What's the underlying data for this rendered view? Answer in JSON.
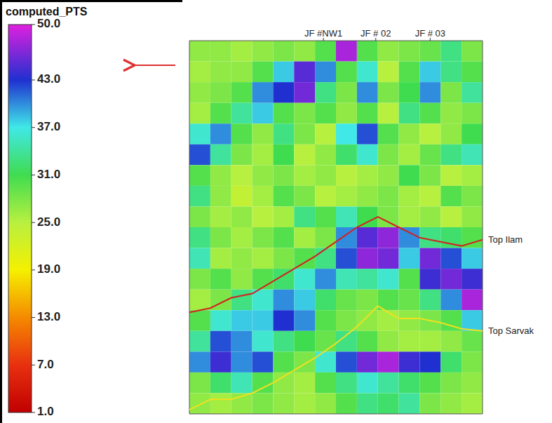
{
  "chart_data": {
    "type": "heatmap",
    "tick_labels": false,
    "xlim": [
      0,
      14
    ],
    "ylim": [
      0,
      18
    ],
    "cells": [
      [
        27,
        27,
        26,
        27,
        28,
        27,
        30,
        48,
        30,
        27,
        28,
        29,
        33,
        28
      ],
      [
        26,
        27,
        27,
        30,
        38,
        45,
        40,
        30,
        36,
        25,
        30,
        38,
        33,
        30
      ],
      [
        27,
        28,
        30,
        40,
        43,
        46,
        33,
        28,
        40,
        28,
        31,
        40,
        28,
        34
      ],
      [
        26,
        30,
        34,
        38,
        30,
        28,
        30,
        27,
        30,
        25,
        33,
        30,
        27,
        28
      ],
      [
        36,
        40,
        30,
        27,
        33,
        28,
        25,
        37,
        42,
        30,
        27,
        25,
        27,
        31
      ],
      [
        42,
        34,
        28,
        26,
        31,
        25,
        27,
        32,
        36,
        28,
        26,
        29,
        33,
        35
      ],
      [
        30,
        27,
        25,
        27,
        28,
        26,
        27,
        25,
        26,
        27,
        31,
        28,
        25,
        26
      ],
      [
        33,
        27,
        24,
        26,
        30,
        28,
        25,
        26,
        27,
        28,
        26,
        25,
        30,
        28
      ],
      [
        28,
        26,
        27,
        25,
        26,
        33,
        30,
        35,
        31,
        28,
        26,
        27,
        25,
        27
      ],
      [
        33,
        28,
        26,
        28,
        30,
        26,
        28,
        40,
        45,
        47,
        40,
        33,
        32,
        30
      ],
      [
        35,
        26,
        27,
        26,
        28,
        30,
        33,
        42,
        47,
        46,
        38,
        46,
        42,
        38
      ],
      [
        28,
        30,
        27,
        30,
        32,
        36,
        40,
        35,
        34,
        36,
        30,
        44,
        46,
        44
      ],
      [
        26,
        28,
        33,
        36,
        40,
        38,
        32,
        29,
        28,
        30,
        29,
        33,
        40,
        48
      ],
      [
        30,
        36,
        38,
        38,
        43,
        40,
        30,
        28,
        27,
        26,
        27,
        28,
        30,
        38
      ],
      [
        34,
        42,
        40,
        36,
        33,
        31,
        29,
        33,
        30,
        27,
        26,
        26,
        27,
        29
      ],
      [
        40,
        44,
        40,
        42,
        30,
        28,
        36,
        42,
        46,
        48,
        44,
        43,
        32,
        28
      ],
      [
        28,
        32,
        35,
        30,
        27,
        26,
        30,
        33,
        36,
        34,
        32,
        30,
        28,
        27
      ],
      [
        27,
        26,
        27,
        28,
        27,
        26,
        27,
        30,
        33,
        32,
        34,
        28,
        27,
        26
      ]
    ],
    "colorbar": {
      "title": "computed_PTS",
      "range": [
        1,
        50
      ],
      "ticks": [
        {
          "value": 50,
          "label": "50.0"
        },
        {
          "value": 43,
          "label": "43.0"
        },
        {
          "value": 37,
          "label": "37.0"
        },
        {
          "value": 31,
          "label": "31.0"
        },
        {
          "value": 25,
          "label": "25.0"
        },
        {
          "value": 19,
          "label": "19.0"
        },
        {
          "value": 13,
          "label": "13.0"
        },
        {
          "value": 7,
          "label": "7.0"
        },
        {
          "value": 1,
          "label": "1.0"
        }
      ]
    },
    "wells": [
      {
        "label": "JF #NW1",
        "x": 6.4
      },
      {
        "label": "JF # 02",
        "x": 8.9
      },
      {
        "label": "JF # 03",
        "x": 11.5
      }
    ],
    "x": [
      0,
      1,
      2,
      3,
      4,
      5,
      6,
      7,
      8,
      9,
      10,
      11,
      12,
      13,
      14
    ],
    "series": [
      {
        "name": "Top Ilam",
        "type": "line",
        "color": "#d42020",
        "values": [
          13.1,
          12.9,
          12.4,
          12.2,
          11.6,
          11.0,
          10.4,
          9.7,
          9.0,
          8.5,
          9.0,
          9.5,
          9.7,
          9.9,
          9.6
        ]
      },
      {
        "name": "Top Sarvak",
        "type": "line",
        "color": "#f0e020",
        "values": [
          17.8,
          17.3,
          17.3,
          17.0,
          16.5,
          15.9,
          15.3,
          14.6,
          13.8,
          12.8,
          13.4,
          13.4,
          13.6,
          13.9,
          14.0
        ]
      }
    ]
  }
}
